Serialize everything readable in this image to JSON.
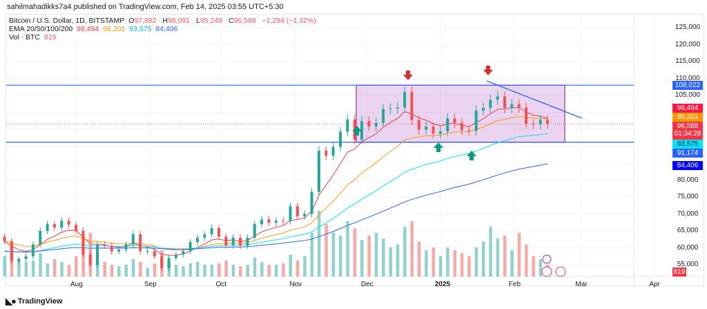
{
  "published": "sahilmahadikks7a4 published on TradingView.com, Feb 14, 2025 03:55 UTC+5:30",
  "legend": {
    "symbol": "Bitcoin / U.S. Dollar, 1D, BITSTAMP",
    "o_label": "O",
    "o": "97,882",
    "h_label": "H",
    "h": "98,091",
    "l_label": "L",
    "l": "95,249",
    "c_label": "C",
    "c": "96,588",
    "change": "−1,294 (−1.32%)",
    "ema_label": "EMA 20/50/100/200",
    "ema20": "98,494",
    "ema50": "98,201",
    "ema100": "93,575",
    "ema200": "84,406",
    "vol_label": "Vol · BTC",
    "vol": "819"
  },
  "price_axis": [
    "125,000",
    "120,000",
    "115,000",
    "110,000",
    "105,000",
    "80,000",
    "75,000",
    "70,000",
    "65,000",
    "60,000",
    "55,000"
  ],
  "price_tags": {
    "resistance": "108,022",
    "ema20": "98,494",
    "ema50": "98,201",
    "last": "96,588",
    "countdown": "01:34:28",
    "ema100": "93,575",
    "support": "91,174",
    "ema200": "84,406",
    "volume": "819"
  },
  "time_axis": [
    "Aug",
    "Sep",
    "Oct",
    "Nov",
    "Dec",
    "2025",
    "Feb",
    "Mar",
    "Apr"
  ],
  "footer_logo": "TradingView",
  "colors": {
    "up": "#26a69a",
    "down": "#ef5350",
    "ema20": "#f23645",
    "ema50": "#ff9800",
    "ema100": "#00e5ff",
    "ema200": "#2962ff",
    "range": "#9c27b0"
  },
  "chart_data": {
    "type": "candlestick",
    "interval_days": 3,
    "start": "Jul 2",
    "closes_k": [
      62,
      56,
      56.7,
      57.5,
      61,
      65,
      67,
      66,
      68,
      66.8,
      65,
      58,
      55,
      60.9,
      60.6,
      58.9,
      59.5,
      61,
      64,
      59,
      59,
      57.5,
      54,
      57,
      58,
      59,
      61.7,
      63,
      64,
      65.8,
      63.3,
      60.7,
      63,
      60.6,
      63,
      67,
      68.4,
      67.4,
      68,
      67.9,
      72.3,
      69.3,
      70,
      76.5,
      88.7,
      87.2,
      89.8,
      94.3,
      97.9,
      91.9,
      97.4,
      95.8,
      96.9,
      101,
      101.1,
      101.4,
      106,
      97.7,
      94.9,
      95.8,
      93.7,
      94.4,
      98.2,
      96.9,
      94.7,
      94.5,
      100.5,
      101.3,
      103.7,
      104.7,
      101.3,
      102.4,
      101.4,
      96.6,
      96.5,
      97.8,
      96.6
    ],
    "volumes": [
      14,
      22,
      12,
      10,
      11,
      16,
      9,
      12,
      10,
      8,
      14,
      28,
      30,
      15,
      10,
      8,
      7,
      8,
      12,
      10,
      6,
      9,
      18,
      10,
      8,
      7,
      9,
      10,
      8,
      8,
      9,
      11,
      8,
      7,
      8,
      13,
      10,
      8,
      8,
      9,
      15,
      11,
      14,
      30,
      45,
      36,
      30,
      28,
      38,
      33,
      25,
      28,
      30,
      26,
      20,
      22,
      34,
      38,
      24,
      18,
      20,
      14,
      20,
      18,
      16,
      14,
      20,
      24,
      34,
      26,
      28,
      18,
      30,
      22,
      14,
      12,
      8
    ],
    "range_box": {
      "top": 108022,
      "bottom": 91174,
      "from": "Nov 26",
      "to": "Feb 25"
    },
    "ylim": [
      52000,
      128000
    ]
  }
}
